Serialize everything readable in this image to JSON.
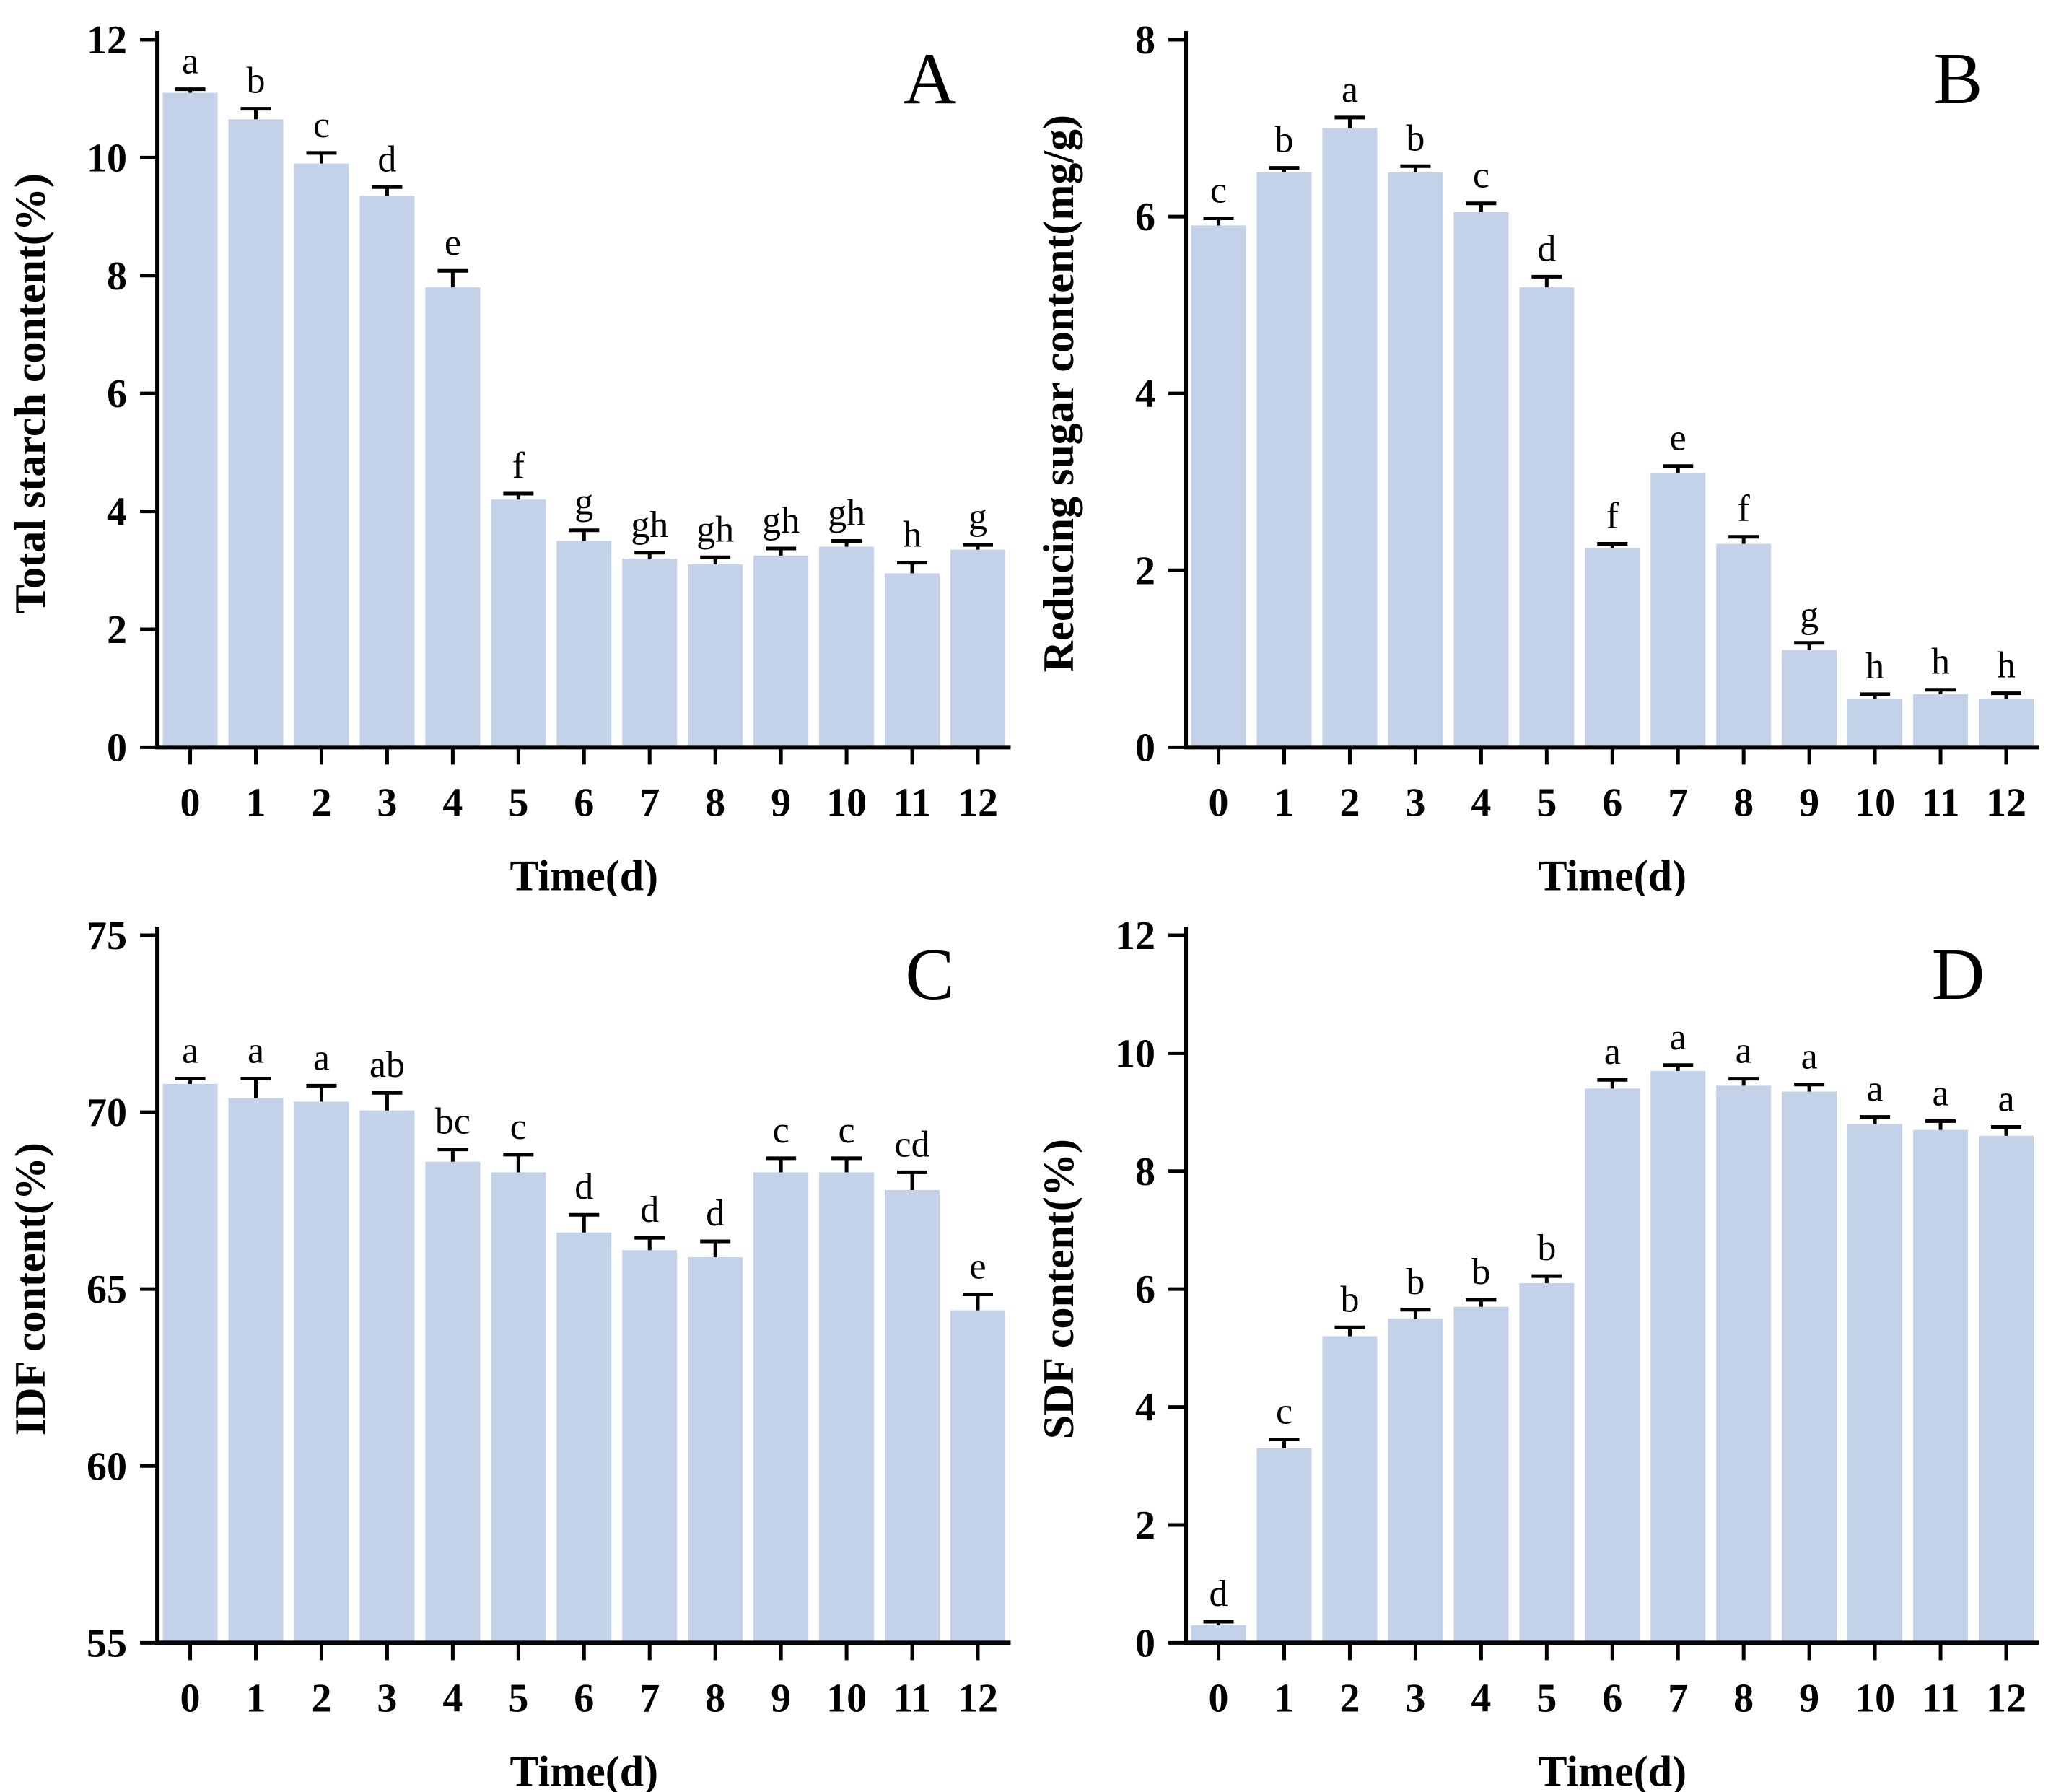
{
  "styles": {
    "bar_color": "#c3d2e9",
    "axis_color": "#000000",
    "text_color": "#000000",
    "background": "#ffffff"
  },
  "chart_data": [
    {
      "panel_letter": "A",
      "type": "bar",
      "title": "",
      "xlabel": "Time(d)",
      "ylabel": "Total starch content(%)",
      "categories": [
        "0",
        "1",
        "2",
        "3",
        "4",
        "5",
        "6",
        "7",
        "8",
        "9",
        "10",
        "11",
        "12"
      ],
      "values": [
        11.1,
        10.65,
        9.9,
        9.35,
        7.8,
        4.2,
        3.5,
        3.2,
        3.1,
        3.25,
        3.4,
        2.95,
        3.35
      ],
      "errors": [
        0.06,
        0.18,
        0.18,
        0.15,
        0.28,
        0.1,
        0.18,
        0.1,
        0.12,
        0.12,
        0.1,
        0.18,
        0.08
      ],
      "sig_letters": [
        "a",
        "b",
        "c",
        "d",
        "e",
        "f",
        "g",
        "gh",
        "gh",
        "gh",
        "gh",
        "h",
        "g"
      ],
      "ylim": [
        0,
        12
      ],
      "yticks": [
        0,
        2,
        4,
        6,
        8,
        10,
        12
      ],
      "grid": false,
      "legend": null
    },
    {
      "panel_letter": "B",
      "type": "bar",
      "title": "",
      "xlabel": "Time(d)",
      "ylabel": "Reducing sugar content(mg/g)",
      "categories": [
        "0",
        "1",
        "2",
        "3",
        "4",
        "5",
        "6",
        "7",
        "8",
        "9",
        "10",
        "11",
        "12"
      ],
      "values": [
        5.9,
        6.5,
        7.0,
        6.5,
        6.05,
        5.2,
        2.25,
        3.1,
        2.3,
        1.1,
        0.55,
        0.6,
        0.55
      ],
      "errors": [
        0.08,
        0.05,
        0.12,
        0.07,
        0.1,
        0.12,
        0.05,
        0.08,
        0.08,
        0.08,
        0.05,
        0.05,
        0.06
      ],
      "sig_letters": [
        "c",
        "b",
        "a",
        "b",
        "c",
        "d",
        "f",
        "e",
        "f",
        "g",
        "h",
        "h",
        "h"
      ],
      "ylim": [
        0,
        8
      ],
      "yticks": [
        0,
        2,
        4,
        6,
        8
      ],
      "grid": false,
      "legend": null
    },
    {
      "panel_letter": "C",
      "type": "bar",
      "title": "",
      "xlabel": "Time(d)",
      "ylabel": "IDF content(%)",
      "categories": [
        "0",
        "1",
        "2",
        "3",
        "4",
        "5",
        "6",
        "7",
        "8",
        "9",
        "10",
        "11",
        "12"
      ],
      "values": [
        70.8,
        70.4,
        70.3,
        70.05,
        68.6,
        68.3,
        66.6,
        66.1,
        65.9,
        68.3,
        68.3,
        67.8,
        64.4
      ],
      "errors": [
        0.15,
        0.55,
        0.45,
        0.5,
        0.35,
        0.5,
        0.5,
        0.35,
        0.45,
        0.4,
        0.4,
        0.5,
        0.45
      ],
      "sig_letters": [
        "a",
        "a",
        "a",
        "ab",
        "bc",
        "c",
        "d",
        "d",
        "d",
        "c",
        "c",
        "cd",
        "e"
      ],
      "ylim": [
        55,
        75
      ],
      "yticks": [
        55,
        60,
        65,
        70,
        75
      ],
      "grid": false,
      "legend": null
    },
    {
      "panel_letter": "D",
      "type": "bar",
      "title": "",
      "xlabel": "Time(d)",
      "ylabel": "SDF content(%)",
      "categories": [
        "0",
        "1",
        "2",
        "3",
        "4",
        "5",
        "6",
        "7",
        "8",
        "9",
        "10",
        "11",
        "12"
      ],
      "values": [
        0.3,
        3.3,
        5.2,
        5.5,
        5.7,
        6.1,
        9.4,
        9.7,
        9.45,
        9.35,
        8.8,
        8.7,
        8.6
      ],
      "errors": [
        0.06,
        0.15,
        0.15,
        0.15,
        0.12,
        0.12,
        0.15,
        0.1,
        0.12,
        0.12,
        0.12,
        0.15,
        0.15
      ],
      "sig_letters": [
        "d",
        "c",
        "b",
        "b",
        "b",
        "b",
        "a",
        "a",
        "a",
        "a",
        "a",
        "a",
        "a"
      ],
      "ylim": [
        0,
        12
      ],
      "yticks": [
        0,
        2,
        4,
        6,
        8,
        10,
        12
      ],
      "grid": false,
      "legend": null
    }
  ]
}
